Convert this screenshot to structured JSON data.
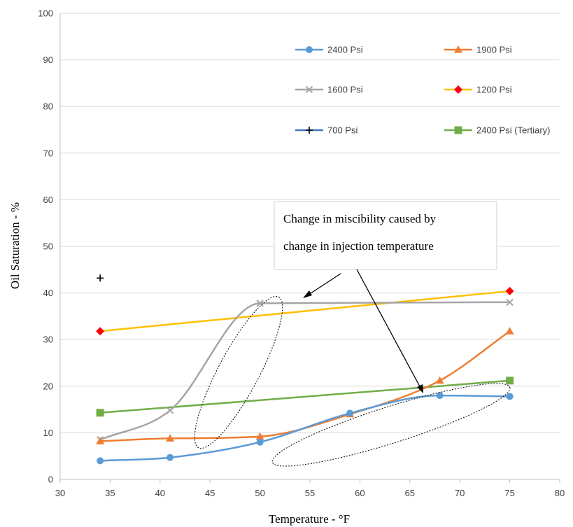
{
  "chart_data": {
    "type": "line",
    "xlabel": "Temperature - °F",
    "ylabel": "Oil Saturation - %",
    "xlim": [
      30,
      80
    ],
    "ylim": [
      0,
      100
    ],
    "x_ticks": [
      "30",
      "35",
      "40",
      "45",
      "50",
      "55",
      "60",
      "65",
      "70",
      "75",
      "80"
    ],
    "y_ticks": [
      "0",
      "10",
      "20",
      "30",
      "40",
      "50",
      "60",
      "70",
      "80",
      "90",
      "100"
    ],
    "grid": "horizontal",
    "legend_position": "top-right",
    "series": [
      {
        "name": "2400 Psi",
        "color": "#5b9bd5",
        "marker": "circle",
        "smooth": true,
        "x": [
          34,
          41,
          50,
          59,
          68,
          75
        ],
        "y": [
          4,
          4.7,
          8,
          14.2,
          18,
          17.8
        ]
      },
      {
        "name": "1900 Psi",
        "color": "#ed7d31",
        "marker": "triangle",
        "smooth": true,
        "x": [
          34,
          41,
          50,
          59,
          68,
          75
        ],
        "y": [
          8.2,
          8.8,
          9.2,
          14,
          21.2,
          31.8
        ]
      },
      {
        "name": "1600 Psi",
        "color": "#a5a5a5",
        "marker": "x",
        "smooth": true,
        "x": [
          34,
          41,
          50,
          75
        ],
        "y": [
          8.5,
          14.8,
          37.8,
          38
        ]
      },
      {
        "name": "1200 Psi",
        "color": "#ffc000",
        "marker": "diamond",
        "marker_color": "#ff0000",
        "smooth": false,
        "x": [
          34,
          75
        ],
        "y": [
          31.8,
          40.4
        ]
      },
      {
        "name": "700 Psi",
        "color": "#4472c4",
        "marker": "plus",
        "marker_color": "#000000",
        "smooth": false,
        "x": [
          34
        ],
        "y": [
          43.2
        ]
      },
      {
        "name": "2400 Psi (Tertiary)",
        "color": "#70ad47",
        "marker": "square",
        "smooth": false,
        "x": [
          34,
          75
        ],
        "y": [
          14.3,
          21.2
        ]
      }
    ],
    "annotations": [
      {
        "lines": [
          "Change in miscibility caused by",
          "change in injection temperature"
        ]
      }
    ]
  }
}
